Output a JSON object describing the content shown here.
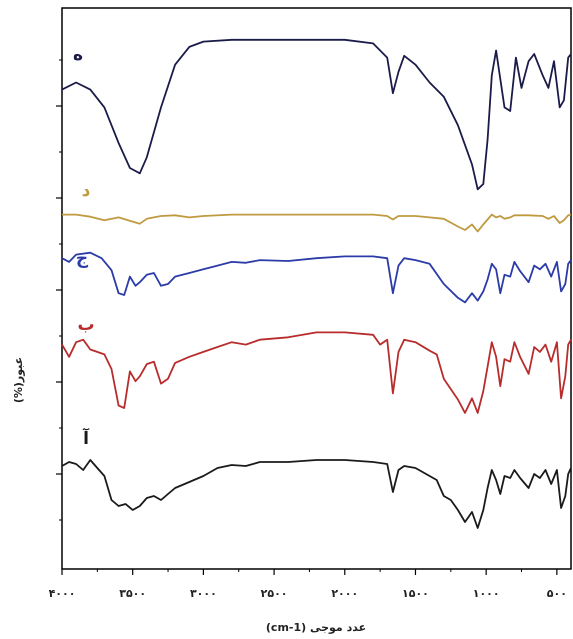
{
  "chart_data": {
    "type": "line",
    "xlabel": "عدد موجی  (cm-1)",
    "ylabel": "عبور(%)",
    "xlim": [
      4000,
      400
    ],
    "x_ticks": [
      4000,
      3500,
      3000,
      2500,
      2000,
      1500,
      1000,
      500
    ],
    "x_tick_labels": [
      "۴۰۰۰",
      "۳۵۰۰",
      "۳۰۰۰",
      "۲۵۰۰",
      "۲۰۰۰",
      "۱۵۰۰",
      "۱۰۰۰",
      "۵۰۰"
    ],
    "series": [
      {
        "name": "ه",
        "color": "#1b1b4a",
        "points": [
          [
            4000,
            0.62
          ],
          [
            3900,
            0.66
          ],
          [
            3800,
            0.62
          ],
          [
            3700,
            0.52
          ],
          [
            3600,
            0.32
          ],
          [
            3520,
            0.18
          ],
          [
            3450,
            0.15
          ],
          [
            3400,
            0.24
          ],
          [
            3300,
            0.52
          ],
          [
            3200,
            0.76
          ],
          [
            3100,
            0.86
          ],
          [
            3000,
            0.89
          ],
          [
            2800,
            0.9
          ],
          [
            2600,
            0.9
          ],
          [
            2400,
            0.9
          ],
          [
            2200,
            0.9
          ],
          [
            2000,
            0.9
          ],
          [
            1800,
            0.88
          ],
          [
            1700,
            0.8
          ],
          [
            1660,
            0.6
          ],
          [
            1620,
            0.72
          ],
          [
            1580,
            0.81
          ],
          [
            1500,
            0.76
          ],
          [
            1400,
            0.66
          ],
          [
            1300,
            0.58
          ],
          [
            1200,
            0.42
          ],
          [
            1100,
            0.2
          ],
          [
            1060,
            0.06
          ],
          [
            1020,
            0.09
          ],
          [
            990,
            0.34
          ],
          [
            960,
            0.7
          ],
          [
            930,
            0.84
          ],
          [
            900,
            0.68
          ],
          [
            870,
            0.52
          ],
          [
            830,
            0.5
          ],
          [
            790,
            0.8
          ],
          [
            750,
            0.63
          ],
          [
            700,
            0.78
          ],
          [
            660,
            0.82
          ],
          [
            600,
            0.7
          ],
          [
            560,
            0.63
          ],
          [
            520,
            0.78
          ],
          [
            480,
            0.52
          ],
          [
            450,
            0.56
          ],
          [
            420,
            0.8
          ],
          [
            400,
            0.82
          ]
        ]
      },
      {
        "name": "د",
        "color": "#bf9a40",
        "points": [
          [
            4000,
            0.62
          ],
          [
            3900,
            0.62
          ],
          [
            3800,
            0.59
          ],
          [
            3700,
            0.54
          ],
          [
            3600,
            0.58
          ],
          [
            3500,
            0.52
          ],
          [
            3450,
            0.49
          ],
          [
            3400,
            0.56
          ],
          [
            3300,
            0.6
          ],
          [
            3200,
            0.61
          ],
          [
            3100,
            0.58
          ],
          [
            3000,
            0.6
          ],
          [
            2800,
            0.62
          ],
          [
            2600,
            0.62
          ],
          [
            2400,
            0.62
          ],
          [
            2200,
            0.62
          ],
          [
            2000,
            0.62
          ],
          [
            1800,
            0.62
          ],
          [
            1700,
            0.6
          ],
          [
            1660,
            0.55
          ],
          [
            1620,
            0.6
          ],
          [
            1500,
            0.6
          ],
          [
            1400,
            0.58
          ],
          [
            1300,
            0.56
          ],
          [
            1200,
            0.45
          ],
          [
            1150,
            0.4
          ],
          [
            1100,
            0.48
          ],
          [
            1060,
            0.38
          ],
          [
            1020,
            0.48
          ],
          [
            990,
            0.55
          ],
          [
            960,
            0.62
          ],
          [
            930,
            0.58
          ],
          [
            900,
            0.6
          ],
          [
            870,
            0.56
          ],
          [
            830,
            0.58
          ],
          [
            800,
            0.61
          ],
          [
            700,
            0.61
          ],
          [
            600,
            0.6
          ],
          [
            560,
            0.56
          ],
          [
            520,
            0.6
          ],
          [
            480,
            0.5
          ],
          [
            450,
            0.54
          ],
          [
            420,
            0.61
          ],
          [
            400,
            0.62
          ]
        ]
      },
      {
        "name": "ج",
        "color": "#2b3ba8",
        "points": [
          [
            4000,
            0.78
          ],
          [
            3950,
            0.74
          ],
          [
            3900,
            0.82
          ],
          [
            3800,
            0.84
          ],
          [
            3720,
            0.78
          ],
          [
            3650,
            0.65
          ],
          [
            3600,
            0.4
          ],
          [
            3560,
            0.38
          ],
          [
            3520,
            0.58
          ],
          [
            3480,
            0.48
          ],
          [
            3450,
            0.52
          ],
          [
            3400,
            0.6
          ],
          [
            3350,
            0.62
          ],
          [
            3300,
            0.48
          ],
          [
            3250,
            0.5
          ],
          [
            3200,
            0.58
          ],
          [
            3100,
            0.62
          ],
          [
            3000,
            0.66
          ],
          [
            2900,
            0.7
          ],
          [
            2800,
            0.74
          ],
          [
            2700,
            0.73
          ],
          [
            2600,
            0.76
          ],
          [
            2400,
            0.75
          ],
          [
            2200,
            0.78
          ],
          [
            2000,
            0.8
          ],
          [
            1800,
            0.8
          ],
          [
            1700,
            0.78
          ],
          [
            1660,
            0.4
          ],
          [
            1620,
            0.7
          ],
          [
            1580,
            0.78
          ],
          [
            1500,
            0.76
          ],
          [
            1400,
            0.72
          ],
          [
            1300,
            0.5
          ],
          [
            1200,
            0.35
          ],
          [
            1150,
            0.3
          ],
          [
            1100,
            0.4
          ],
          [
            1060,
            0.32
          ],
          [
            1020,
            0.42
          ],
          [
            990,
            0.55
          ],
          [
            960,
            0.72
          ],
          [
            930,
            0.66
          ],
          [
            900,
            0.4
          ],
          [
            870,
            0.6
          ],
          [
            830,
            0.58
          ],
          [
            800,
            0.74
          ],
          [
            760,
            0.64
          ],
          [
            700,
            0.52
          ],
          [
            660,
            0.7
          ],
          [
            620,
            0.66
          ],
          [
            580,
            0.72
          ],
          [
            540,
            0.58
          ],
          [
            500,
            0.74
          ],
          [
            470,
            0.42
          ],
          [
            440,
            0.5
          ],
          [
            420,
            0.72
          ],
          [
            400,
            0.76
          ]
        ]
      },
      {
        "name": "ب",
        "color": "#b82c2c",
        "points": [
          [
            4000,
            0.7
          ],
          [
            3950,
            0.6
          ],
          [
            3900,
            0.72
          ],
          [
            3850,
            0.74
          ],
          [
            3800,
            0.66
          ],
          [
            3700,
            0.62
          ],
          [
            3650,
            0.5
          ],
          [
            3600,
            0.2
          ],
          [
            3560,
            0.18
          ],
          [
            3520,
            0.48
          ],
          [
            3480,
            0.4
          ],
          [
            3450,
            0.44
          ],
          [
            3400,
            0.54
          ],
          [
            3350,
            0.56
          ],
          [
            3300,
            0.38
          ],
          [
            3250,
            0.42
          ],
          [
            3200,
            0.55
          ],
          [
            3100,
            0.6
          ],
          [
            3000,
            0.64
          ],
          [
            2900,
            0.68
          ],
          [
            2800,
            0.72
          ],
          [
            2700,
            0.7
          ],
          [
            2600,
            0.74
          ],
          [
            2400,
            0.76
          ],
          [
            2200,
            0.8
          ],
          [
            2000,
            0.8
          ],
          [
            1800,
            0.78
          ],
          [
            1750,
            0.7
          ],
          [
            1700,
            0.74
          ],
          [
            1660,
            0.3
          ],
          [
            1620,
            0.64
          ],
          [
            1580,
            0.74
          ],
          [
            1500,
            0.72
          ],
          [
            1400,
            0.65
          ],
          [
            1350,
            0.62
          ],
          [
            1300,
            0.42
          ],
          [
            1200,
            0.25
          ],
          [
            1150,
            0.14
          ],
          [
            1100,
            0.26
          ],
          [
            1060,
            0.14
          ],
          [
            1020,
            0.32
          ],
          [
            990,
            0.52
          ],
          [
            960,
            0.72
          ],
          [
            930,
            0.6
          ],
          [
            900,
            0.36
          ],
          [
            870,
            0.58
          ],
          [
            830,
            0.56
          ],
          [
            800,
            0.72
          ],
          [
            760,
            0.6
          ],
          [
            700,
            0.46
          ],
          [
            660,
            0.68
          ],
          [
            620,
            0.64
          ],
          [
            580,
            0.7
          ],
          [
            540,
            0.56
          ],
          [
            500,
            0.72
          ],
          [
            470,
            0.26
          ],
          [
            440,
            0.44
          ],
          [
            420,
            0.7
          ],
          [
            400,
            0.74
          ]
        ]
      },
      {
        "name": "آ",
        "color": "#1a1a1a",
        "points": [
          [
            4000,
            0.74
          ],
          [
            3950,
            0.78
          ],
          [
            3900,
            0.76
          ],
          [
            3850,
            0.7
          ],
          [
            3800,
            0.8
          ],
          [
            3750,
            0.72
          ],
          [
            3700,
            0.64
          ],
          [
            3650,
            0.4
          ],
          [
            3600,
            0.34
          ],
          [
            3550,
            0.36
          ],
          [
            3500,
            0.3
          ],
          [
            3450,
            0.34
          ],
          [
            3400,
            0.42
          ],
          [
            3350,
            0.44
          ],
          [
            3300,
            0.4
          ],
          [
            3250,
            0.46
          ],
          [
            3200,
            0.52
          ],
          [
            3100,
            0.58
          ],
          [
            3000,
            0.64
          ],
          [
            2900,
            0.72
          ],
          [
            2800,
            0.75
          ],
          [
            2700,
            0.74
          ],
          [
            2600,
            0.78
          ],
          [
            2400,
            0.78
          ],
          [
            2200,
            0.8
          ],
          [
            2000,
            0.8
          ],
          [
            1800,
            0.78
          ],
          [
            1700,
            0.76
          ],
          [
            1660,
            0.48
          ],
          [
            1620,
            0.7
          ],
          [
            1580,
            0.74
          ],
          [
            1500,
            0.72
          ],
          [
            1400,
            0.64
          ],
          [
            1350,
            0.6
          ],
          [
            1300,
            0.44
          ],
          [
            1250,
            0.4
          ],
          [
            1200,
            0.3
          ],
          [
            1150,
            0.18
          ],
          [
            1100,
            0.28
          ],
          [
            1060,
            0.12
          ],
          [
            1020,
            0.3
          ],
          [
            990,
            0.52
          ],
          [
            960,
            0.7
          ],
          [
            930,
            0.6
          ],
          [
            900,
            0.46
          ],
          [
            870,
            0.64
          ],
          [
            830,
            0.62
          ],
          [
            800,
            0.7
          ],
          [
            760,
            0.62
          ],
          [
            700,
            0.52
          ],
          [
            660,
            0.66
          ],
          [
            620,
            0.62
          ],
          [
            580,
            0.7
          ],
          [
            540,
            0.56
          ],
          [
            500,
            0.7
          ],
          [
            470,
            0.32
          ],
          [
            440,
            0.44
          ],
          [
            420,
            0.66
          ],
          [
            400,
            0.72
          ]
        ]
      }
    ]
  }
}
